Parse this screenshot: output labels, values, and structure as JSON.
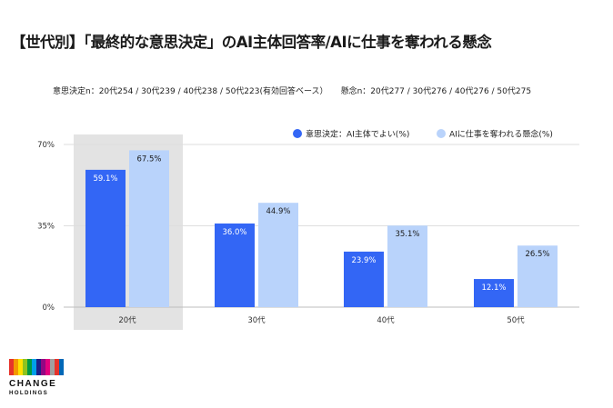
{
  "title": "【世代別】「最終的な意思決定」のAI主体回答率/AIに仕事を奪われる懸念",
  "subtitle": {
    "left": "意思決定n：20代254 / 30代239 / 40代238 / 50代223(有効回答ベース）",
    "right": "懸念n：20代277 / 30代276 / 40代276 / 50代275"
  },
  "logo": {
    "line1": "CHANGE",
    "line2": "HOLDINGS",
    "bar_colors": [
      "#e6332a",
      "#f39800",
      "#ffe100",
      "#8fc31f",
      "#009944",
      "#00a0e9",
      "#1d2088",
      "#920783",
      "#e4007f",
      "#a0a0a0",
      "#e6332a",
      "#0068b7"
    ]
  },
  "chart_data": {
    "type": "bar",
    "categories": [
      "20代",
      "30代",
      "40代",
      "50代"
    ],
    "series": [
      {
        "name": "意思決定：AI主体でよい(%)",
        "values": [
          59.1,
          36.0,
          23.9,
          12.1
        ],
        "labels": [
          "59.1%",
          "36.0%",
          "23.9%",
          "12.1%"
        ],
        "color": "#3366f5"
      },
      {
        "name": "AIに仕事を奪われる懸念(%)",
        "values": [
          67.5,
          44.9,
          35.1,
          26.5
        ],
        "labels": [
          "67.5%",
          "44.9%",
          "35.1%",
          "26.5%"
        ],
        "color": "#b9d3fb"
      }
    ],
    "ylim": [
      0,
      70
    ],
    "yticks": [
      0,
      35,
      70
    ],
    "ytick_labels": [
      "0%",
      "35%",
      "70%"
    ],
    "highlight_category": "20代",
    "highlight_color": "#e3e3e3",
    "grid": true,
    "legend_position": "top-right"
  }
}
